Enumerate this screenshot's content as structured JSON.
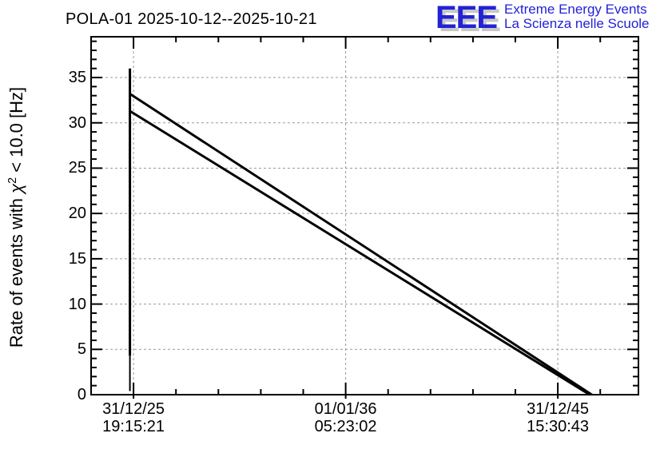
{
  "header": {
    "title": "POLA-01 2025-10-12--2025-10-21",
    "logo": {
      "acronym": "EEE",
      "line1": "Extreme Energy Events",
      "line2": "La Scienza nelle Scuole",
      "color": "#2222d6",
      "shadow_color": "#c8c8c8"
    }
  },
  "chart_data": {
    "type": "line",
    "title": "POLA-01 2025-10-12--2025-10-21",
    "ylabel": "Rate of events with χ² < 10.0 [Hz]",
    "ylabel_parts": {
      "pre": "Rate of events with ",
      "chi": "χ",
      "sup": "2",
      "post": " < 10.0 [Hz]"
    },
    "xlabel": "",
    "x_axis_type": "time",
    "x_unit": "years since 31/12/25 19:15:21",
    "xlim": [
      -2.0,
      23.8
    ],
    "ylim": [
      0,
      39.5
    ],
    "grid": true,
    "grid_color": "#999999",
    "axis_color": "#000000",
    "series_color": "#000000",
    "x_major_ticks": [
      {
        "x": 0,
        "label_date": "31/12/25",
        "label_time": "19:15:21"
      },
      {
        "x": 10,
        "label_date": "01/01/36",
        "label_time": "05:23:02"
      },
      {
        "x": 20,
        "label_date": "31/12/45",
        "label_time": "15:30:43"
      }
    ],
    "x_minor_step": 2,
    "y_major_ticks": [
      0,
      5,
      10,
      15,
      20,
      25,
      30,
      35
    ],
    "y_minor_step": 1,
    "legend": null,
    "series": [
      {
        "name": "data-spike-thick",
        "points": [
          [
            -0.17,
            36.0
          ],
          [
            -0.17,
            4.3
          ]
        ],
        "stroke_width": 3
      },
      {
        "name": "data-spike-thin",
        "points": [
          [
            -0.17,
            4.3
          ],
          [
            -0.17,
            0.4
          ]
        ],
        "stroke_width": 2
      },
      {
        "name": "upper-rate-line",
        "points": [
          [
            -0.17,
            33.2
          ],
          [
            21.6,
            0.0
          ]
        ],
        "stroke_width": 3
      },
      {
        "name": "lower-rate-line",
        "points": [
          [
            -0.17,
            31.3
          ],
          [
            21.5,
            0.0
          ]
        ],
        "stroke_width": 3
      }
    ]
  }
}
